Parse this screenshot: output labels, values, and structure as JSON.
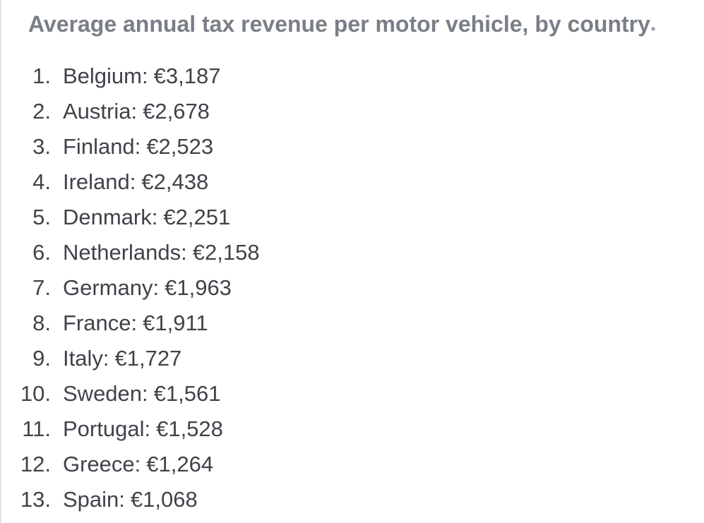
{
  "title": "Average annual tax revenue per motor vehicle, by country",
  "title_marker": "*",
  "ranking": [
    {
      "rank": "1.",
      "country": "Belgium",
      "value": "€3,187"
    },
    {
      "rank": "2.",
      "country": "Austria",
      "value": "€2,678"
    },
    {
      "rank": "3.",
      "country": "Finland",
      "value": "€2,523"
    },
    {
      "rank": "4.",
      "country": "Ireland",
      "value": "€2,438"
    },
    {
      "rank": "5.",
      "country": "Denmark",
      "value": "€2,251"
    },
    {
      "rank": "6.",
      "country": "Netherlands",
      "value": "€2,158"
    },
    {
      "rank": "7.",
      "country": "Germany",
      "value": "€1,963"
    },
    {
      "rank": "8.",
      "country": "France",
      "value": "€1,911"
    },
    {
      "rank": "9.",
      "country": "Italy",
      "value": "€1,727"
    },
    {
      "rank": "10.",
      "country": "Sweden",
      "value": "€1,561"
    },
    {
      "rank": "11.",
      "country": "Portugal",
      "value": "€1,528"
    },
    {
      "rank": "12.",
      "country": "Greece",
      "value": "€1,264"
    },
    {
      "rank": "13.",
      "country": "Spain",
      "value": "€1,068"
    }
  ],
  "colors": {
    "title": "#7a7f87",
    "text": "#3f4349",
    "background": "#ffffff"
  }
}
